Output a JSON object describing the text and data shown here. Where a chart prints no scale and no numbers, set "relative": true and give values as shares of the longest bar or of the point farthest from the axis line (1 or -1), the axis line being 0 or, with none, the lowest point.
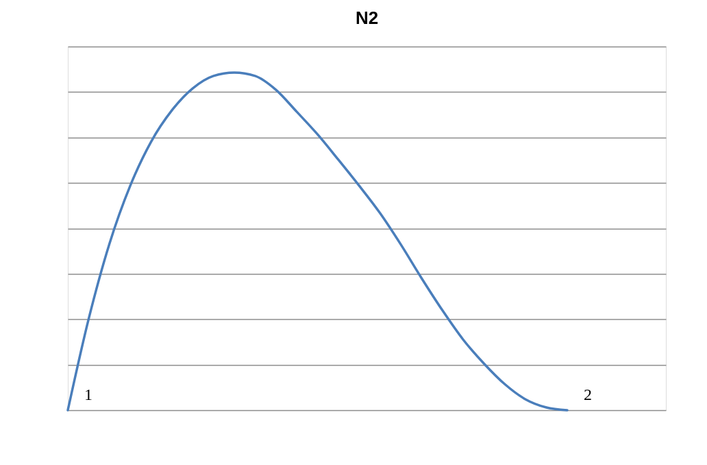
{
  "chart_data": {
    "type": "line",
    "title": "N2",
    "relative": true,
    "grid": "y",
    "categories": [
      null,
      null,
      null,
      null,
      null,
      null,
      null,
      null,
      null,
      null,
      null,
      null,
      null,
      null,
      null,
      null,
      null,
      null,
      null,
      null,
      null,
      null,
      null,
      null,
      null
    ],
    "series": [
      {
        "color": "#4a7ebb",
        "values": [
          0,
          0.27,
          0.493,
          0.665,
          0.795,
          0.888,
          0.953,
          0.99,
          1,
          0.99,
          0.949,
          0.884,
          0.817,
          0.742,
          0.665,
          0.584,
          0.491,
          0.391,
          0.296,
          0.209,
          0.138,
          0.077,
          0.032,
          0.008,
          0
        ]
      }
    ],
    "annotations": [
      "1",
      "2"
    ]
  }
}
